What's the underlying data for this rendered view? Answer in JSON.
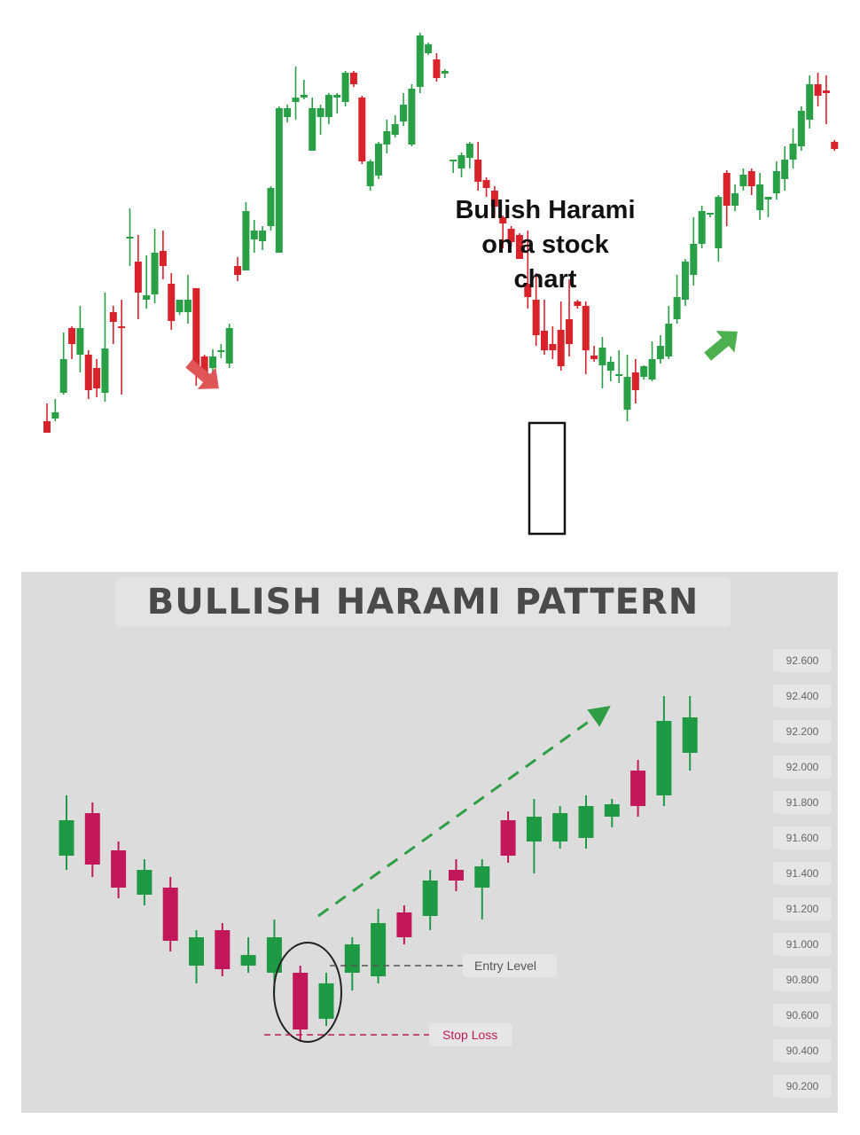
{
  "colors": {
    "bullish_top": "#2aa046",
    "bearish_top": "#d9232b",
    "bullish_bottom": "#1e9a45",
    "bearish_bottom": "#c2185b",
    "trend_arrow_green": "#4caf50",
    "trend_arrow_red": "#e05555"
  },
  "top_chart": {
    "annotation_lines": [
      "Bullish Harami",
      "on a stock",
      "chart"
    ],
    "icons": [
      "down-trend-arrow-icon",
      "up-trend-arrow-icon",
      "harami-highlight-box"
    ]
  },
  "bottom_chart": {
    "title": "BULLISH HARAMI PATTERN",
    "entry_label": "Entry Level",
    "stop_label": "Stop Loss",
    "icons": [
      "trend-up-dashed-arrow-icon",
      "harami-circle"
    ]
  },
  "chart_data": [
    {
      "type": "candlestick",
      "title": "",
      "ohlc": [
        [
          1,
          125,
          112,
          112,
          145
        ],
        [
          2,
          128,
          135,
          125,
          150
        ],
        [
          3,
          157,
          195,
          155,
          225
        ],
        [
          4,
          230,
          212,
          195,
          232
        ],
        [
          5,
          200,
          230,
          180,
          255
        ],
        [
          6,
          200,
          160,
          150,
          205
        ],
        [
          7,
          185,
          162,
          152,
          195
        ],
        [
          8,
          157,
          207,
          147,
          270
        ],
        [
          9,
          248,
          237,
          212,
          255
        ],
        [
          10,
          232,
          230,
          155,
          262
        ],
        [
          11,
          333,
          333,
          300,
          365
        ],
        [
          12,
          305,
          270,
          240,
          335
        ],
        [
          13,
          262,
          267,
          252,
          312
        ],
        [
          14,
          268,
          315,
          258,
          342
        ],
        [
          15,
          317,
          300,
          285,
          340
        ],
        [
          16,
          280,
          238,
          228,
          292
        ],
        [
          17,
          248,
          262,
          245,
          262
        ],
        [
          18,
          248,
          262,
          235,
          290
        ],
        [
          19,
          275,
          182,
          165,
          275
        ],
        [
          20,
          198,
          178,
          168,
          200
        ],
        [
          21,
          185,
          198,
          180,
          206
        ],
        [
          22,
          203,
          205,
          196,
          212
        ],
        [
          23,
          190,
          230,
          185,
          235
        ],
        [
          24,
          300,
          290,
          283,
          310
        ],
        [
          25,
          295,
          362,
          295,
          372
        ],
        [
          26,
          330,
          340,
          315,
          352
        ],
        [
          27,
          328,
          340,
          318,
          345
        ],
        [
          28,
          345,
          388,
          340,
          390
        ],
        [
          29,
          315,
          478,
          315,
          480
        ],
        [
          30,
          468,
          478,
          462,
          482
        ],
        [
          31,
          485,
          490,
          465,
          525
        ],
        [
          32,
          490,
          493,
          488,
          510
        ],
        [
          33,
          430,
          478,
          430,
          490
        ],
        [
          34,
          468,
          478,
          448,
          482
        ],
        [
          35,
          468,
          493,
          460,
          495
        ],
        [
          36,
          490,
          493,
          472,
          495
        ],
        [
          37,
          485,
          518,
          480,
          520
        ],
        [
          38,
          518,
          505,
          502,
          520
        ],
        [
          39,
          490,
          418,
          415,
          492
        ],
        [
          40,
          390,
          418,
          385,
          420
        ],
        [
          41,
          402,
          438,
          398,
          440
        ],
        [
          42,
          437,
          452,
          427,
          465
        ],
        [
          43,
          448,
          460,
          445,
          470
        ],
        [
          44,
          463,
          482,
          458,
          495
        ],
        [
          45,
          437,
          500,
          435,
          505
        ],
        [
          46,
          502,
          560,
          495,
          563
        ],
        [
          47,
          540,
          550,
          538,
          552
        ],
        [
          48,
          533,
          512,
          508,
          540
        ],
        [
          49,
          517,
          520,
          512,
          522
        ],
        [
          50,
          418,
          420,
          405,
          420
        ],
        [
          51,
          410,
          425,
          400,
          428
        ],
        [
          52,
          422,
          438,
          410,
          440
        ],
        [
          53,
          420,
          395,
          385,
          440
        ],
        [
          54,
          397,
          388,
          378,
          400
        ],
        [
          55,
          385,
          367,
          355,
          390
        ],
        [
          56,
          355,
          348,
          320,
          357
        ],
        [
          57,
          342,
          327,
          322,
          345
        ],
        [
          58,
          335,
          308,
          308,
          337
        ],
        [
          59,
          280,
          265,
          252,
          340
        ],
        [
          60,
          262,
          222,
          210,
          292
        ],
        [
          61,
          227,
          205,
          200,
          262
        ],
        [
          62,
          212,
          205,
          195,
          232
        ],
        [
          63,
          228,
          187,
          182,
          260
        ],
        [
          64,
          240,
          212,
          198,
          285
        ],
        [
          65,
          260,
          255,
          252,
          262
        ],
        [
          66,
          255,
          205,
          178,
          260
        ],
        [
          67,
          199,
          195,
          192,
          210
        ],
        [
          68,
          188,
          208,
          162,
          220
        ],
        [
          69,
          182,
          192,
          170,
          198
        ],
        [
          70,
          177,
          178,
          168,
          205
        ],
        [
          71,
          138,
          175,
          125,
          200
        ],
        [
          72,
          180,
          160,
          145,
          195
        ],
        [
          73,
          175,
          187,
          172,
          188
        ],
        [
          74,
          172,
          195,
          170,
          215
        ],
        [
          75,
          195,
          210,
          190,
          222
        ],
        [
          76,
          198,
          235,
          195,
          255
        ],
        [
          77,
          240,
          265,
          235,
          290
        ],
        [
          78,
          262,
          305,
          255,
          308
        ],
        [
          79,
          290,
          325,
          278,
          355
        ],
        [
          80,
          325,
          362,
          320,
          368
        ],
        [
          81,
          358,
          360,
          355,
          360
        ],
        [
          82,
          320,
          378,
          305,
          380
        ],
        [
          83,
          405,
          368,
          345,
          408
        ],
        [
          84,
          368,
          382,
          362,
          392
        ],
        [
          85,
          390,
          403,
          385,
          410
        ],
        [
          86,
          407,
          390,
          380,
          410
        ],
        [
          87,
          363,
          392,
          352,
          405
        ],
        [
          88,
          375,
          378,
          355,
          378
        ],
        [
          89,
          382,
          407,
          375,
          418
        ],
        [
          90,
          398,
          420,
          385,
          435
        ],
        [
          91,
          420,
          438,
          410,
          455
        ],
        [
          92,
          435,
          475,
          430,
          480
        ],
        [
          93,
          465,
          505,
          455,
          515
        ],
        [
          94,
          505,
          492,
          480,
          518
        ],
        [
          95,
          498,
          495,
          460,
          515
        ],
        [
          96,
          440,
          432,
          430,
          442
        ]
      ],
      "ohlc_fields": [
        "x",
        "open",
        "close",
        "low",
        "high"
      ]
    },
    {
      "type": "candlestick",
      "title": "BULLISH HARAMI PATTERN",
      "y_ticks": [
        "92.600",
        "92.400",
        "92.200",
        "92.000",
        "91.800",
        "91.600",
        "91.400",
        "91.200",
        "91.000",
        "90.800",
        "90.600",
        "90.400",
        "90.200"
      ],
      "ylim": [
        90.1,
        92.7
      ],
      "ohlc": [
        [
          1,
          91.5,
          91.7,
          91.42,
          91.84
        ],
        [
          2,
          91.74,
          91.45,
          91.38,
          91.8
        ],
        [
          3,
          91.53,
          91.32,
          91.26,
          91.58
        ],
        [
          4,
          91.28,
          91.42,
          91.22,
          91.48
        ],
        [
          5,
          91.32,
          91.02,
          90.96,
          91.38
        ],
        [
          6,
          90.88,
          91.04,
          90.78,
          91.08
        ],
        [
          7,
          91.08,
          90.86,
          90.82,
          91.12
        ],
        [
          8,
          90.88,
          90.94,
          90.84,
          91.04
        ],
        [
          9,
          90.84,
          91.04,
          90.73,
          91.14
        ],
        [
          10,
          90.84,
          90.52,
          90.45,
          90.88
        ],
        [
          11,
          90.58,
          90.78,
          90.54,
          90.84
        ],
        [
          12,
          90.84,
          91.0,
          90.74,
          91.04
        ],
        [
          13,
          90.82,
          91.12,
          90.78,
          91.2
        ],
        [
          14,
          91.18,
          91.04,
          91.0,
          91.22
        ],
        [
          15,
          91.16,
          91.36,
          91.08,
          91.42
        ],
        [
          16,
          91.42,
          91.36,
          91.3,
          91.48
        ],
        [
          17,
          91.32,
          91.44,
          91.14,
          91.48
        ],
        [
          18,
          91.7,
          91.5,
          91.46,
          91.75
        ],
        [
          19,
          91.58,
          91.72,
          91.4,
          91.82
        ],
        [
          20,
          91.58,
          91.74,
          91.54,
          91.78
        ],
        [
          21,
          91.6,
          91.78,
          91.54,
          91.84
        ],
        [
          22,
          91.72,
          91.79,
          91.66,
          91.82
        ],
        [
          23,
          91.98,
          91.78,
          91.72,
          92.04
        ],
        [
          24,
          91.84,
          92.26,
          91.78,
          92.4
        ],
        [
          25,
          92.08,
          92.28,
          91.98,
          92.4
        ]
      ],
      "ohlc_fields": [
        "x",
        "open",
        "close",
        "low",
        "high"
      ],
      "annotations": [
        {
          "text": "Entry Level",
          "y": 90.88
        },
        {
          "text": "Stop Loss",
          "y": 90.49
        }
      ]
    }
  ]
}
